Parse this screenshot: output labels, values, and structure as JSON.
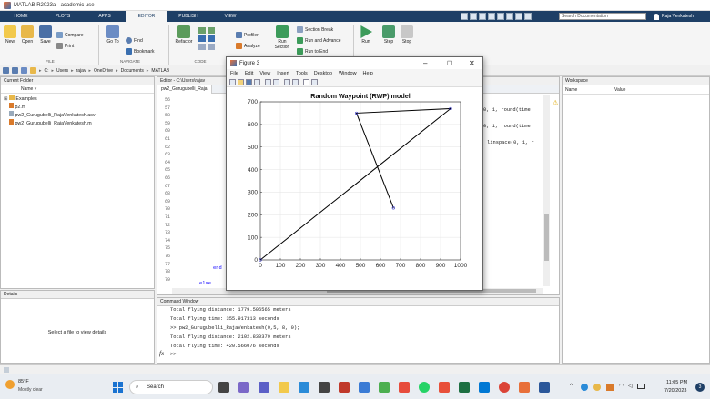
{
  "window": {
    "title": "MATLAB R2023a - academic use"
  },
  "tabs": [
    "HOME",
    "PLOTS",
    "APPS",
    "EDITOR",
    "PUBLISH",
    "VIEW"
  ],
  "search": {
    "placeholder": "Search Documentation"
  },
  "user": {
    "name": "Raja Venkatesh"
  },
  "ribbon": {
    "file": {
      "new": "New",
      "open": "Open",
      "save": "Save",
      "compare": "Compare",
      "print": "Print",
      "group": "FILE"
    },
    "navigate": {
      "goto": "Go To",
      "find": "Find",
      "bookmark": "Bookmark",
      "group": "NAVIGATE"
    },
    "code": {
      "refactor": "Refactor",
      "profiler": "Profiler",
      "analyze": "Analyze",
      "group": "CODE"
    },
    "section": {
      "run_section": "Run Section",
      "section_break": "Section Break",
      "run_and_advance": "Run and Advance",
      "run_to_end": "Run to End"
    },
    "run": {
      "run": "Run",
      "step": "Step",
      "stop": "Stop"
    }
  },
  "address": {
    "crumbs": [
      "C:",
      "Users",
      "rajav",
      "OneDrive",
      "Documents",
      "MATLAB"
    ]
  },
  "current_folder": {
    "title": "Current Folder",
    "col_name": "Name",
    "items": [
      "Examples",
      "p2.m",
      "pw2_Gurugubelli_RajaVenkatesh.asv",
      "pw2_Gurugubelli_RajaVenkatesh.m"
    ]
  },
  "details": {
    "title": "Details",
    "message": "Select a file to view details"
  },
  "editor": {
    "title": "Editor - C:\\Users\\rajav",
    "tab": "pw2_Gurugubelli_Raja",
    "line_numbers": [
      "56",
      "57",
      "58",
      "59",
      "60",
      "61",
      "62",
      "63",
      "64",
      "65",
      "66",
      "67",
      "68",
      "69",
      "70",
      "71",
      "72",
      "73",
      "74",
      "75",
      "76",
      "77",
      "78",
      "79"
    ],
    "right_fragments": [
      "0, 1, round(time",
      "0, 1, round(time",
      "linspace(0, 1, r"
    ],
    "end_kw": "end",
    "else_kw": "else"
  },
  "workspace": {
    "title": "Workspace",
    "col_name": "Name",
    "col_value": "Value"
  },
  "command_window": {
    "title": "Command Window",
    "lines": [
      "Total flying distance: 1779.506565 meters",
      "Total flying time: 355.917313 seconds",
      ">> pw2_Gurugubelli_RajaVenkatesh(0,5, 8, 0);",
      "Total flying distance: 2102.830379 meters",
      "Total flying time: 420.566076 seconds"
    ],
    "prompt": ">>"
  },
  "figure": {
    "title": "Figure 3",
    "menu": [
      "File",
      "Edit",
      "View",
      "Insert",
      "Tools",
      "Desktop",
      "Window",
      "Help"
    ]
  },
  "chart_data": {
    "type": "line",
    "title": "Random Waypoint (RWP) model",
    "xlim": [
      0,
      1000
    ],
    "ylim": [
      0,
      700
    ],
    "xticks": [
      0,
      100,
      200,
      300,
      400,
      500,
      600,
      700,
      800,
      900,
      1000
    ],
    "yticks": [
      0,
      100,
      200,
      300,
      400,
      500,
      600,
      700
    ],
    "grid": true,
    "series": [
      {
        "x": [
          0,
          950,
          480,
          665
        ],
        "y": [
          0,
          670,
          650,
          230
        ]
      }
    ],
    "line_color": "#000000",
    "marker_color": "#3030c0"
  },
  "taskbar": {
    "weather_temp": "85°F",
    "weather_desc": "Mostly clear",
    "search": "Search",
    "time": "11:05 PM",
    "date": "7/20/2023"
  }
}
